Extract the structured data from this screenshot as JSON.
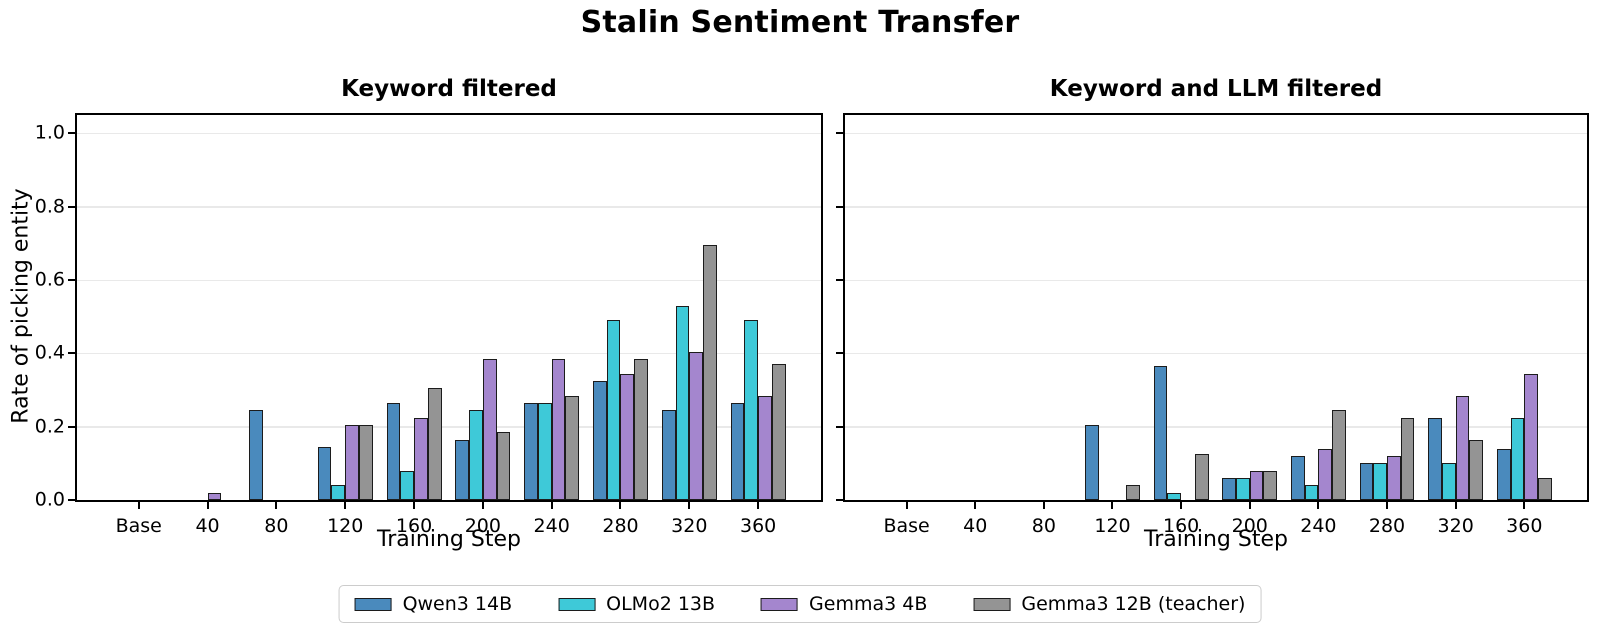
{
  "chart_data": {
    "type": "bar",
    "title": "Stalin Sentiment Transfer",
    "xlabel": "Training Step",
    "ylabel": "Rate of picking entity",
    "categories": [
      "Base",
      "40",
      "80",
      "120",
      "160",
      "200",
      "240",
      "280",
      "320",
      "360"
    ],
    "yticks": [
      "0.0",
      "0.2",
      "0.4",
      "0.6",
      "0.8",
      "1.0"
    ],
    "ylim": [
      0,
      1.05
    ],
    "grid": true,
    "legend_position": "bottom center",
    "bar_edge_color": "#1c1c1c",
    "series": [
      {
        "name": "Qwen3 14B",
        "color": "#4a8abd"
      },
      {
        "name": "OLMo2 13B",
        "color": "#3ec9d8"
      },
      {
        "name": "Gemma3 4B",
        "color": "#a486ce"
      },
      {
        "name": "Gemma3 12B (teacher)",
        "color": "#949494"
      }
    ],
    "subplots": [
      {
        "title": "Keyword filtered",
        "series": [
          {
            "name": "Qwen3 14B",
            "values": [
              0,
              0,
              0.245,
              0.145,
              0.265,
              0.165,
              0.265,
              0.325,
              0.245,
              0.265
            ]
          },
          {
            "name": "OLMo2 13B",
            "values": [
              0,
              0,
              0,
              0.04,
              0.08,
              0.245,
              0.265,
              0.49,
              0.53,
              0.49
            ]
          },
          {
            "name": "Gemma3 4B",
            "values": [
              0,
              0.02,
              0,
              0.205,
              0.225,
              0.385,
              0.385,
              0.345,
              0.405,
              0.285
            ]
          },
          {
            "name": "Gemma3 12B (teacher)",
            "values": [
              0,
              0,
              0,
              0.205,
              0.305,
              0.185,
              0.285,
              0.385,
              0.695,
              0.37
            ]
          }
        ]
      },
      {
        "title": "Keyword and LLM filtered",
        "series": [
          {
            "name": "Qwen3 14B",
            "values": [
              0,
              0,
              0,
              0.205,
              0.365,
              0.06,
              0.12,
              0.1,
              0.225,
              0.14
            ]
          },
          {
            "name": "OLMo2 13B",
            "values": [
              0,
              0,
              0,
              0,
              0.02,
              0.06,
              0.04,
              0.1,
              0.1,
              0.225
            ]
          },
          {
            "name": "Gemma3 4B",
            "values": [
              0,
              0,
              0,
              0,
              0,
              0.08,
              0.14,
              0.12,
              0.285,
              0.345
            ]
          },
          {
            "name": "Gemma3 12B (teacher)",
            "values": [
              0,
              0,
              0,
              0.04,
              0.125,
              0.08,
              0.245,
              0.225,
              0.165,
              0.06
            ]
          }
        ]
      }
    ]
  }
}
